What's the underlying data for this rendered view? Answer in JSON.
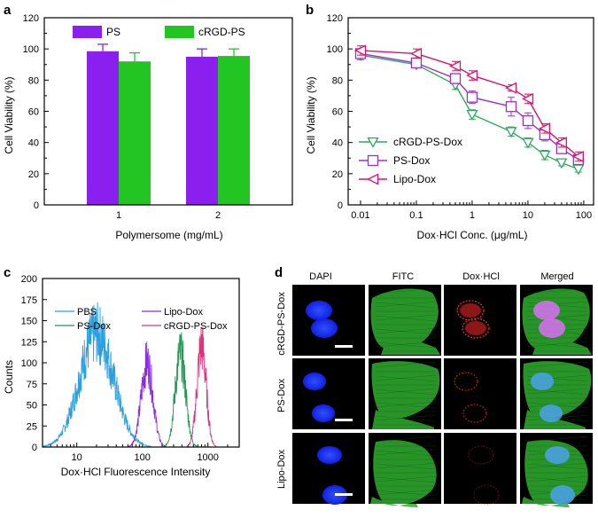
{
  "panels": {
    "a": {
      "letter": "a"
    },
    "b": {
      "letter": "b"
    },
    "c": {
      "letter": "c"
    },
    "d": {
      "letter": "d",
      "columns": [
        "DAPI",
        "FITC",
        "Dox·HCl",
        "Merged"
      ],
      "rows": [
        "cRGD-PS-Dox",
        "PS-Dox",
        "Lipo-Dox"
      ],
      "colors": {
        "dapi": "#1a2bff",
        "fitc": "#2fae2f",
        "dox": "#ff2a2a",
        "merged_nucleus": "#d070e8"
      }
    }
  },
  "chart_data": [
    {
      "type": "bar",
      "panel": "a",
      "categories": [
        "1",
        "2"
      ],
      "series": [
        {
          "name": "PS",
          "color": "#8b1ff0",
          "values": [
            98.5,
            95.0
          ],
          "errors": [
            4.5,
            5.0
          ]
        },
        {
          "name": "cRGD-PS",
          "color": "#22c522",
          "values": [
            92.0,
            95.5
          ],
          "errors": [
            5.5,
            4.5
          ]
        }
      ],
      "xlabel": "Polymersome (mg/mL)",
      "ylabel": "Cell Viability (%)",
      "ylim": [
        0,
        120
      ],
      "yticks": [
        "0",
        "20",
        "40",
        "60",
        "80",
        "100",
        "120"
      ],
      "legend": "top"
    },
    {
      "type": "line",
      "panel": "b",
      "x": [
        0.01,
        0.1,
        0.5,
        1,
        5,
        10,
        20,
        40,
        80
      ],
      "xscale": "log",
      "xlim": [
        0.006,
        150
      ],
      "xticks": [
        "0.01",
        "0.1",
        "1",
        "10",
        "100"
      ],
      "series": [
        {
          "name": "cRGD-PS-Dox",
          "color": "#30a860",
          "marker": "triangle-down",
          "values": [
            96,
            90,
            77,
            58,
            47,
            40,
            32,
            27,
            23
          ],
          "errors": [
            3,
            2,
            3,
            3,
            3,
            3,
            3,
            2,
            2
          ]
        },
        {
          "name": "PS-Dox",
          "color": "#9b30d0",
          "marker": "square",
          "values": [
            97,
            91,
            81,
            69,
            63,
            54,
            45,
            36,
            29
          ],
          "errors": [
            3,
            2,
            3,
            4,
            6,
            5,
            4,
            3,
            3
          ]
        },
        {
          "name": "Lipo-Dox",
          "color": "#e0106a",
          "marker": "triangle-left",
          "values": [
            99,
            97,
            89,
            83,
            75,
            68,
            49,
            40,
            31
          ],
          "errors": [
            3,
            3,
            3,
            3,
            2,
            3,
            3,
            3,
            3
          ]
        }
      ],
      "xlabel": "Dox·HCl  Conc. (μg/mL)",
      "ylabel": "Cell Viability (%)",
      "ylim": [
        0,
        120
      ],
      "yticks": [
        "0",
        "20",
        "40",
        "60",
        "80",
        "100",
        "120"
      ],
      "legend": "lower-left"
    },
    {
      "type": "line",
      "panel": "c",
      "xscale": "log",
      "xlim": [
        3,
        3000
      ],
      "xticks": [
        "10",
        "100",
        "1000"
      ],
      "series": [
        {
          "name": "PBS",
          "color": "#2aa0e0",
          "peak_center": 20,
          "peak_height": 135,
          "log_width": 0.26
        },
        {
          "name": "Lipo-Dox",
          "color": "#8a2be2",
          "peak_center": 118,
          "peak_height": 100,
          "log_width": 0.09
        },
        {
          "name": "PS-Dox",
          "color": "#1e9b50",
          "peak_center": 380,
          "peak_height": 110,
          "log_width": 0.08
        },
        {
          "name": "cRGD-PS-Dox",
          "color": "#e0307a",
          "peak_center": 800,
          "peak_height": 120,
          "log_width": 0.07
        }
      ],
      "xlabel": "Dox·HCl Fluorescence Intensity",
      "ylabel": "Counts",
      "ylim": [
        0,
        200
      ],
      "yticks": [
        "0",
        "25",
        "50",
        "75",
        "100",
        "125",
        "150",
        "175",
        "200"
      ],
      "legend": "top"
    }
  ]
}
